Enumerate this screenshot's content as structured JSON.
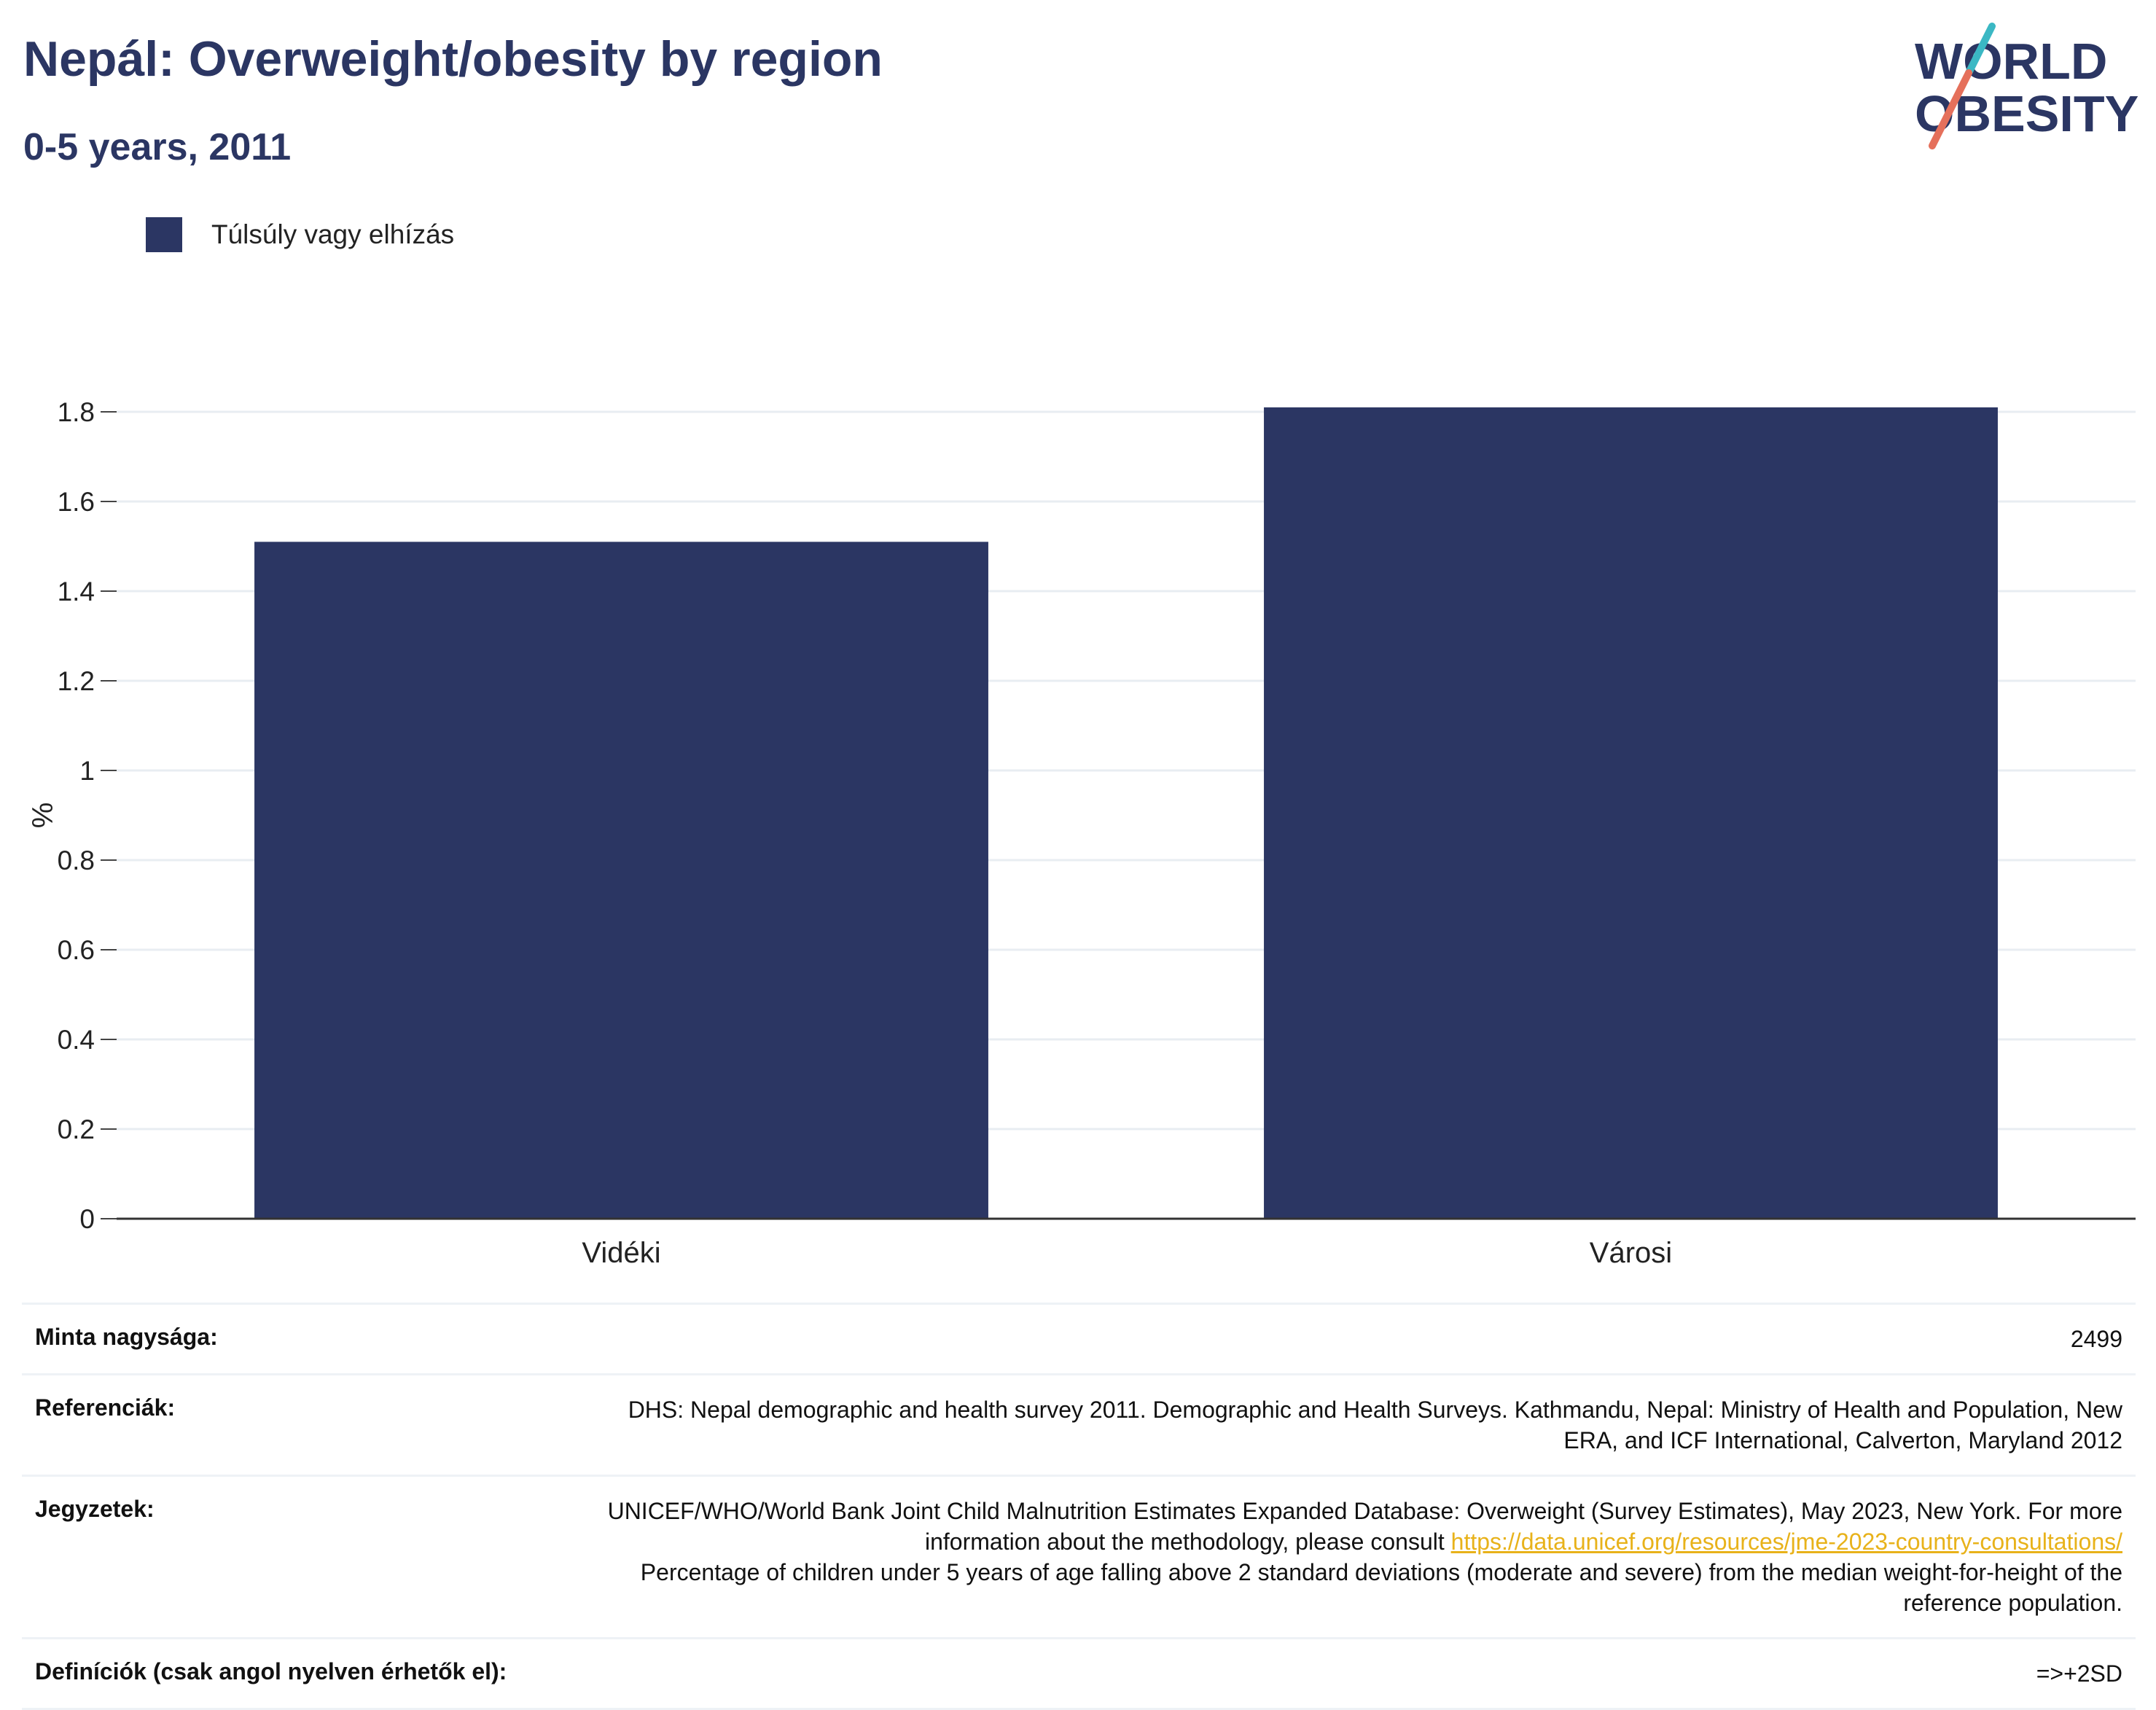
{
  "header": {
    "title": "Nepál: Overweight/obesity by region",
    "subtitle": "0-5 years, 2011"
  },
  "logo": {
    "line1": "WORLD",
    "line2": "OBESITY",
    "colors": {
      "text": "#2b3663",
      "slash_top": "#3bb8c4",
      "slash_bottom": "#e5705b"
    }
  },
  "legend": {
    "label": "Túlsúly vagy elhízás",
    "color": "#2b3663"
  },
  "chart_data": {
    "type": "bar",
    "title": "Nepál: Overweight/obesity by region",
    "subtitle": "0-5 years, 2011",
    "categories": [
      "Vidéki",
      "Városi"
    ],
    "series": [
      {
        "name": "Túlsúly vagy elhízás",
        "values": [
          1.51,
          1.81
        ],
        "color": "#2b3663"
      }
    ],
    "xlabel": "",
    "ylabel": "%",
    "ylim": [
      0,
      1.8
    ],
    "yticks": [
      0,
      0.2,
      0.4,
      0.6,
      0.8,
      1,
      1.2,
      1.4,
      1.6,
      1.8
    ],
    "ytick_labels": [
      "0",
      "0.2",
      "0.4",
      "0.6",
      "0.8",
      "1",
      "1.2",
      "1.4",
      "1.6",
      "1.8"
    ],
    "grid": true,
    "legend_position": "top-left"
  },
  "info": {
    "sample_label": "Minta nagysága:",
    "sample_value": "2499",
    "refs_label": "Referenciák:",
    "refs_value": "DHS: Nepal demographic and health survey 2011. Demographic and Health Surveys. Kathmandu, Nepal: Ministry of Health and Population, New ERA, and ICF International, Calverton, Maryland 2012",
    "notes_label": "Jegyzetek:",
    "notes_before": "UNICEF/WHO/World Bank Joint Child Malnutrition Estimates Expanded Database: Overweight (Survey Estimates), May 2023, New York. For more information about the methodology, please consult ",
    "notes_link": "https://data.unicef.org/resources/jme-2023-country-consultations/",
    "notes_after": "Percentage of children under 5 years of age falling above 2 standard deviations (moderate and severe) from the median weight-for-height of the reference population.",
    "defs_label": "Definíciók (csak angol nyelven érhetők el):",
    "defs_value": "=>+2SD"
  }
}
